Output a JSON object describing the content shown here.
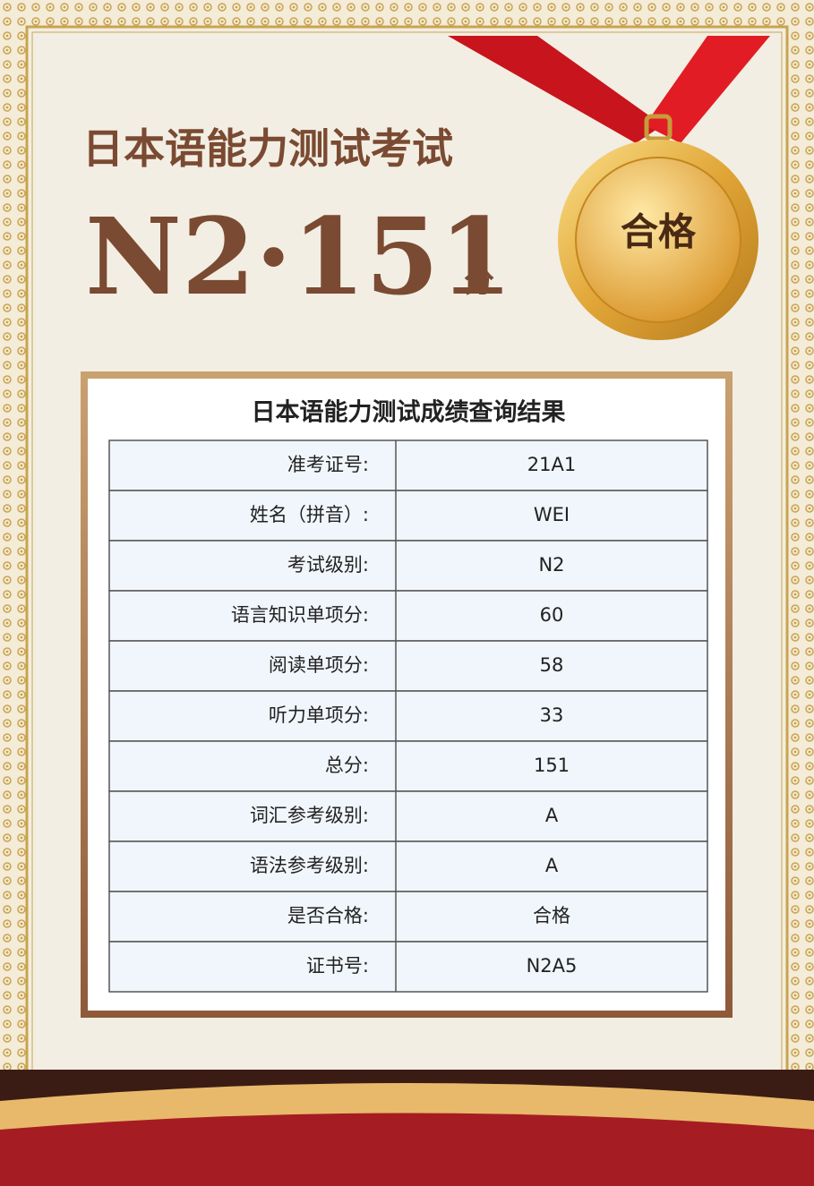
{
  "header": {
    "title": "日本语能力测试考试",
    "score": "N2·151",
    "unit": "分"
  },
  "medal": {
    "label": "合格"
  },
  "table": {
    "title": "日本语能力测试成绩查询结果",
    "rows": [
      [
        "准考证号:",
        "21A1"
      ],
      [
        "姓名（拼音）:",
        "WEI"
      ],
      [
        "考试级别:",
        "N2"
      ],
      [
        "语言知识单项分:",
        "60"
      ],
      [
        "阅读单项分:",
        "58"
      ],
      [
        "听力单项分:",
        "33"
      ],
      [
        "总分:",
        "151"
      ],
      [
        "词汇参考级别:",
        "A"
      ],
      [
        "语法参考级别:",
        "A"
      ],
      [
        "是否合格:",
        "合格"
      ],
      [
        "证书号:",
        "N2A5"
      ]
    ]
  }
}
